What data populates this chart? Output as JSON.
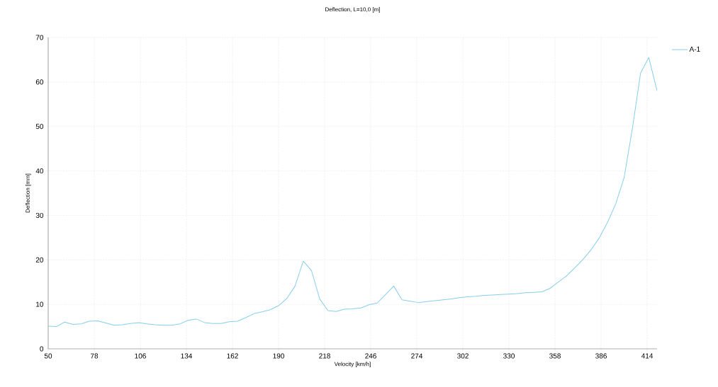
{
  "chart_data": {
    "type": "line",
    "title": "Deflection, L=10,0 [m]",
    "xlabel": "Velocity [km/h]",
    "ylabel": "Deflection [mm]",
    "x": [
      50,
      55,
      60,
      65,
      70,
      75,
      80,
      85,
      90,
      95,
      100,
      105,
      110,
      115,
      120,
      125,
      130,
      135,
      140,
      145,
      150,
      155,
      160,
      165,
      170,
      175,
      180,
      185,
      190,
      195,
      200,
      205,
      210,
      215,
      220,
      225,
      230,
      235,
      240,
      245,
      250,
      255,
      260,
      265,
      270,
      275,
      280,
      285,
      290,
      295,
      300,
      305,
      310,
      315,
      320,
      325,
      330,
      335,
      340,
      345,
      350,
      355,
      360,
      365,
      370,
      375,
      380,
      385,
      390,
      395,
      400,
      405,
      410,
      415,
      420
    ],
    "series": [
      {
        "name": "A-1",
        "color": "#87ceeb",
        "values": [
          5.1,
          5.0,
          6.0,
          5.5,
          5.6,
          6.2,
          6.3,
          5.8,
          5.3,
          5.4,
          5.7,
          5.9,
          5.6,
          5.4,
          5.3,
          5.3,
          5.6,
          6.4,
          6.7,
          5.9,
          5.7,
          5.7,
          6.1,
          6.2,
          7.0,
          7.9,
          8.3,
          8.8,
          9.7,
          11.3,
          14.1,
          19.7,
          17.6,
          11.2,
          8.6,
          8.4,
          8.9,
          9.0,
          9.2,
          9.9,
          10.3,
          12.2,
          14.1,
          11.0,
          10.7,
          10.4,
          10.6,
          10.8,
          11.0,
          11.2,
          11.5,
          11.7,
          11.8,
          12.0,
          12.1,
          12.2,
          12.3,
          12.4,
          12.6,
          12.7,
          12.8,
          13.6,
          15.0,
          16.4,
          18.2,
          20.1,
          22.3,
          25.0,
          28.5,
          32.7,
          38.5,
          49.5,
          62.0,
          65.5,
          58.0
        ]
      }
    ],
    "xlim": [
      50,
      420
    ],
    "xticks": [
      50,
      78,
      106,
      134,
      162,
      190,
      218,
      246,
      274,
      302,
      330,
      358,
      386,
      414
    ],
    "ylim": [
      0,
      70
    ],
    "yticks": [
      0,
      10,
      20,
      30,
      40,
      50,
      60,
      70
    ],
    "grid": true,
    "legend": "right",
    "marker": "none",
    "line_style": "solid"
  }
}
